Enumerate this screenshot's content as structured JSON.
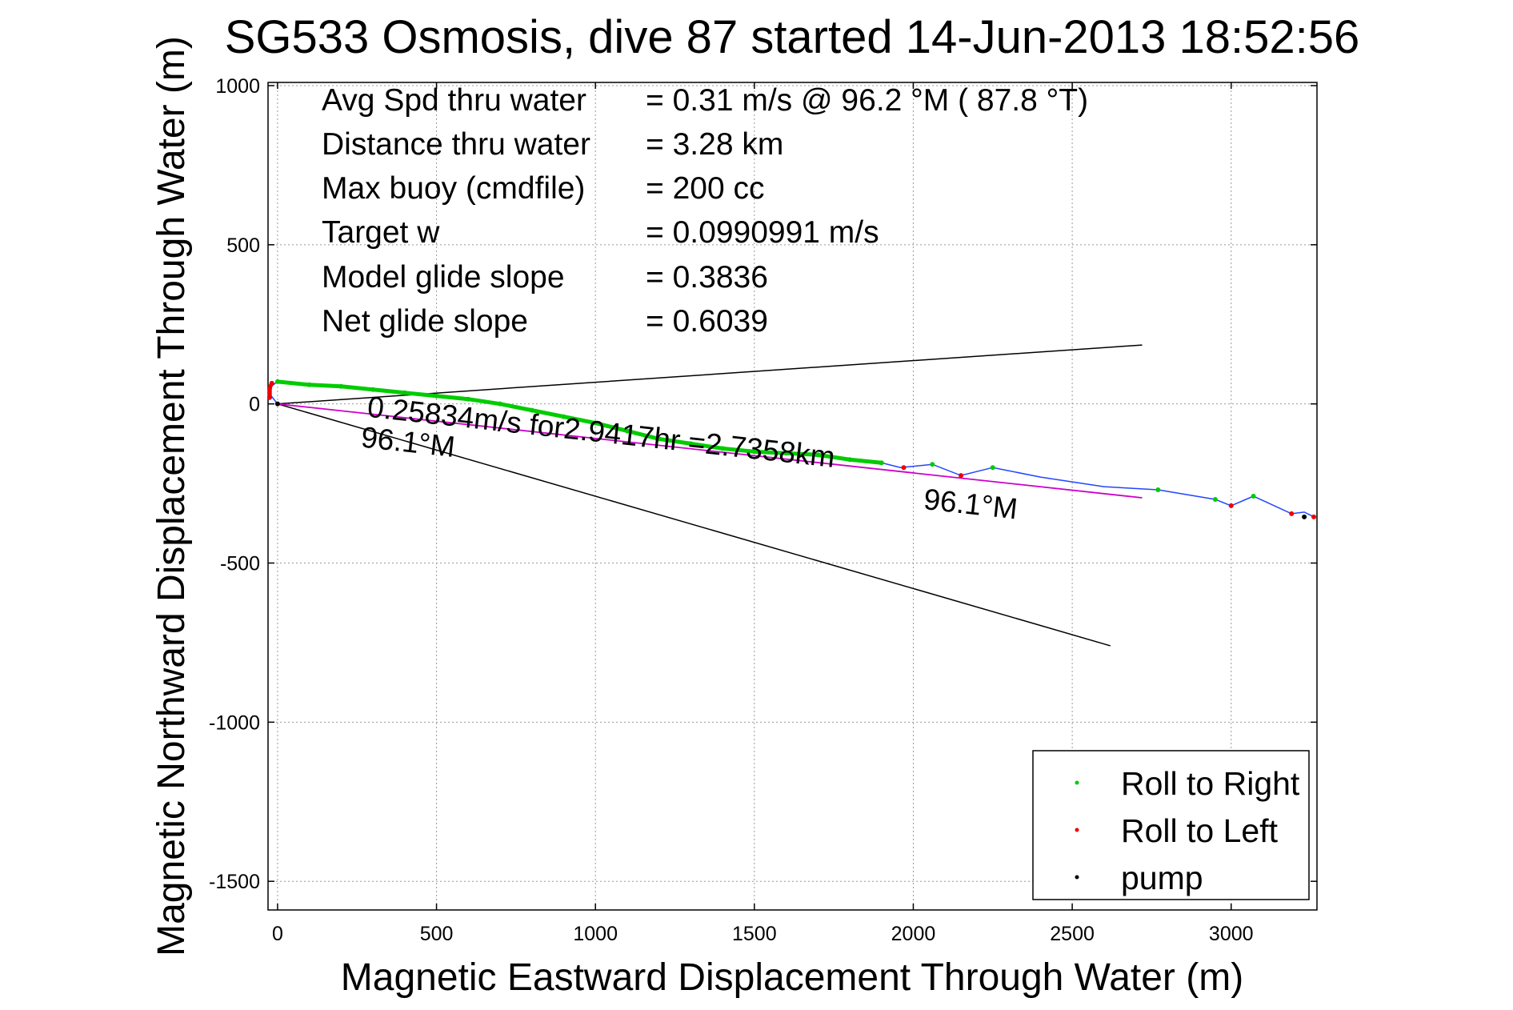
{
  "chart_data": {
    "type": "scatter",
    "title": "SG533 Osmosis, dive 87 started 14-Jun-2013 18:52:56",
    "xlabel": "Magnetic Eastward Displacement Through Water (m)",
    "ylabel": "Magnetic Northward Displacement Through Water (m)",
    "xlim": [
      -30,
      3270
    ],
    "ylim": [
      -1590,
      1010
    ],
    "xticks": [
      0,
      500,
      1000,
      1500,
      2000,
      2500,
      3000
    ],
    "yticks": [
      1000,
      500,
      0,
      -500,
      -1000,
      -1500
    ],
    "xtick_labels": [
      "0",
      "500",
      "1000",
      "1500",
      "2000",
      "2500",
      "3000"
    ],
    "ytick_labels": [
      "1000",
      "500",
      "0",
      "-500",
      "-1000",
      "-1500"
    ],
    "grid": true,
    "legend_position": "bottom-right",
    "info_lines": [
      {
        "label": "Avg Spd thru water",
        "value": "=  0.31 m/s @  96.2 °M ( 87.8 °T)"
      },
      {
        "label": "Distance thru water",
        "value": "=  3.28 km"
      },
      {
        "label": "Max buoy (cmdfile)",
        "value": "= 200 cc"
      },
      {
        "label": "Target w",
        "value": "= 0.0990991 m/s"
      },
      {
        "label": "Model glide slope",
        "value": "= 0.3836"
      },
      {
        "label": "Net glide slope",
        "value": "= 0.6039"
      }
    ],
    "series": [
      {
        "name": "Roll to Right",
        "color": "#00cc00",
        "points": [
          [
            0,
            70
          ],
          [
            100,
            60
          ],
          [
            200,
            55
          ],
          [
            300,
            45
          ],
          [
            400,
            35
          ],
          [
            500,
            25
          ],
          [
            600,
            15
          ],
          [
            700,
            0
          ],
          [
            800,
            -20
          ],
          [
            900,
            -40
          ],
          [
            1000,
            -60
          ],
          [
            1100,
            -85
          ],
          [
            1200,
            -110
          ],
          [
            1300,
            -125
          ],
          [
            1400,
            -140
          ],
          [
            1500,
            -150
          ],
          [
            1600,
            -155
          ],
          [
            1700,
            -160
          ],
          [
            1800,
            -175
          ],
          [
            1900,
            -185
          ],
          [
            2060,
            -190
          ],
          [
            2250,
            -200
          ],
          [
            2770,
            -270
          ],
          [
            2950,
            -300
          ],
          [
            3070,
            -290
          ]
        ]
      },
      {
        "name": "Roll to Left",
        "color": "#ee0000",
        "points": [
          [
            -25,
            20
          ],
          [
            -25,
            50
          ],
          [
            -18,
            65
          ],
          [
            1970,
            -200
          ],
          [
            2150,
            -225
          ],
          [
            3000,
            -320
          ],
          [
            3190,
            -345
          ],
          [
            3260,
            -355
          ]
        ]
      },
      {
        "name": "pump",
        "color": "#000000",
        "points": [
          [
            0,
            0
          ],
          [
            3230,
            -355
          ]
        ]
      }
    ],
    "track": [
      [
        0,
        0
      ],
      [
        -20,
        25
      ],
      [
        -20,
        55
      ],
      [
        0,
        70
      ],
      [
        100,
        62
      ],
      [
        300,
        45
      ],
      [
        500,
        25
      ],
      [
        700,
        0
      ],
      [
        800,
        -20
      ],
      [
        1000,
        -60
      ],
      [
        1200,
        -110
      ],
      [
        1400,
        -140
      ],
      [
        1600,
        -155
      ],
      [
        1800,
        -175
      ],
      [
        1900,
        -185
      ],
      [
        1960,
        -200
      ],
      [
        2060,
        -190
      ],
      [
        2150,
        -225
      ],
      [
        2250,
        -200
      ],
      [
        2400,
        -230
      ],
      [
        2600,
        -260
      ],
      [
        2770,
        -270
      ],
      [
        2950,
        -300
      ],
      [
        3000,
        -320
      ],
      [
        3070,
        -290
      ],
      [
        3190,
        -345
      ],
      [
        3230,
        -340
      ],
      [
        3260,
        -355
      ]
    ],
    "current_line": {
      "color": "#000000",
      "from": [
        0,
        0
      ],
      "to": [
        2720,
        185
      ]
    },
    "heading_line": {
      "color": "#000000",
      "from": [
        0,
        0
      ],
      "to": [
        2620,
        -760
      ]
    },
    "net_line": {
      "color": "#cc00cc",
      "from": [
        0,
        0
      ],
      "to": [
        2720,
        -295
      ]
    },
    "annotations": [
      {
        "text": "0.25834m/s for2.9417hr =2.7358km",
        "x": 280,
        "y": -40,
        "rotation": 6.2
      },
      {
        "text": "96.1°M",
        "x": 260,
        "y": -135,
        "rotation": 6.2
      },
      {
        "text": "96.1°M",
        "x": 2030,
        "y": -330,
        "rotation": 6.2
      }
    ]
  }
}
